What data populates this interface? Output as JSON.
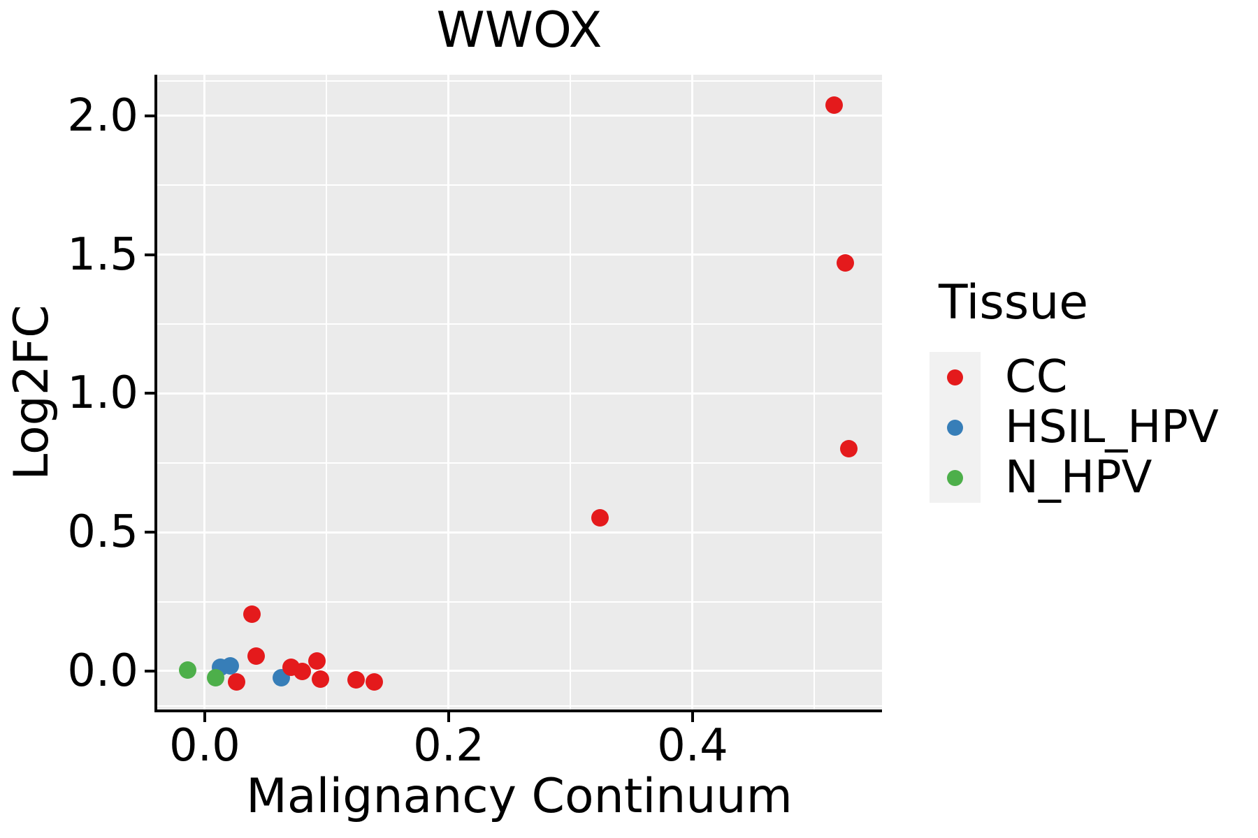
{
  "chart": {
    "title": "WWOX",
    "x_axis": {
      "label": "Malignancy Continuum",
      "tick_labels": [
        "0.0",
        "0.2",
        "0.4"
      ],
      "tick_values": [
        0.0,
        0.2,
        0.4
      ],
      "minor_tick_values": [
        0.1,
        0.3,
        0.5
      ]
    },
    "y_axis": {
      "label": "Log2FC",
      "tick_labels": [
        "0.0",
        "0.5",
        "1.0",
        "1.5",
        "2.0"
      ],
      "tick_values": [
        0.0,
        0.5,
        1.0,
        1.5,
        2.0
      ],
      "minor_tick_values": [
        -0.125,
        0.25,
        0.75,
        1.25,
        1.75,
        2.125
      ]
    },
    "legend": {
      "title": "Tissue",
      "entries": [
        {
          "label": "CC",
          "color": "#E41A1C"
        },
        {
          "label": "HSIL_HPV",
          "color": "#377EB8"
        },
        {
          "label": "N_HPV",
          "color": "#4DAF4A"
        }
      ]
    },
    "colors": {
      "panel_background": "#EBEBEB",
      "gridline": "#FFFFFF",
      "legend_key_background": "#F1F1F1"
    }
  },
  "chart_data": {
    "type": "scatter",
    "title": "WWOX",
    "xlabel": "Malignancy Continuum",
    "ylabel": "Log2FC",
    "xlim": [
      -0.0395,
      0.5553
    ],
    "ylim": [
      -0.1434,
      2.1484
    ],
    "grid": "major-and-minor",
    "legend_position": "right",
    "series": [
      {
        "name": "HSIL_HPV",
        "color": "#377EB8",
        "points": [
          [
            0.013,
            0.013
          ],
          [
            0.021,
            0.02
          ],
          [
            0.063,
            -0.025
          ]
        ]
      },
      {
        "name": "N_HPV",
        "color": "#4DAF4A",
        "points": [
          [
            -0.014,
            0.003
          ],
          [
            0.009,
            -0.023
          ]
        ]
      },
      {
        "name": "CC",
        "color": "#E41A1C",
        "points": [
          [
            0.516,
            2.04
          ],
          [
            0.525,
            1.47
          ],
          [
            0.528,
            0.8
          ],
          [
            0.324,
            0.553
          ],
          [
            0.039,
            0.206
          ],
          [
            0.042,
            0.053
          ],
          [
            0.026,
            -0.04
          ],
          [
            0.071,
            0.015
          ],
          [
            0.08,
            -0.002
          ],
          [
            0.092,
            0.036
          ],
          [
            0.095,
            -0.03
          ],
          [
            0.124,
            -0.032
          ],
          [
            0.139,
            -0.038
          ]
        ]
      }
    ]
  }
}
